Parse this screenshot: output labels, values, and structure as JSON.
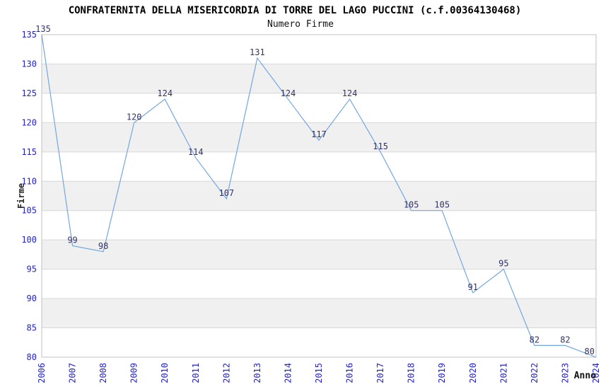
{
  "title": "CONFRATERNITA DELLA MISERICORDIA DI TORRE DEL LAGO PUCCINI (c.f.00364130468)",
  "subtitle": "Numero Firme",
  "chart_data": {
    "type": "line",
    "title": "CONFRATERNITA DELLA MISERICORDIA DI TORRE DEL LAGO PUCCINI (c.f.00364130468)",
    "subtitle": "Numero Firme",
    "xlabel": "Anno",
    "ylabel": "Firme",
    "categories": [
      "2006",
      "2007",
      "2008",
      "2009",
      "2010",
      "2011",
      "2012",
      "2013",
      "2014",
      "2015",
      "2016",
      "2017",
      "2018",
      "2019",
      "2020",
      "2021",
      "2022",
      "2023",
      "2024"
    ],
    "series": [
      {
        "name": "Numero Firme",
        "values": [
          135,
          99,
          98,
          120,
          124,
          114,
          107,
          131,
          124,
          117,
          124,
          115,
          105,
          105,
          91,
          95,
          82,
          82,
          80
        ]
      }
    ],
    "ylim": [
      80,
      135
    ],
    "ytick_step": 5,
    "yticks": [
      80,
      85,
      90,
      95,
      100,
      105,
      110,
      115,
      120,
      125,
      130,
      135
    ],
    "grid": true,
    "alternating_bands": true,
    "legend_position": "none",
    "point_labels_shown": true,
    "colors": {
      "line": "#74A7E0",
      "tick_text": "#2222CC",
      "point_label_text": "#333366",
      "band": "#F0F0F0",
      "grid_line": "#D8D8D8",
      "plot_border": "#C0C0C0",
      "background": "#FFFFFF"
    }
  }
}
